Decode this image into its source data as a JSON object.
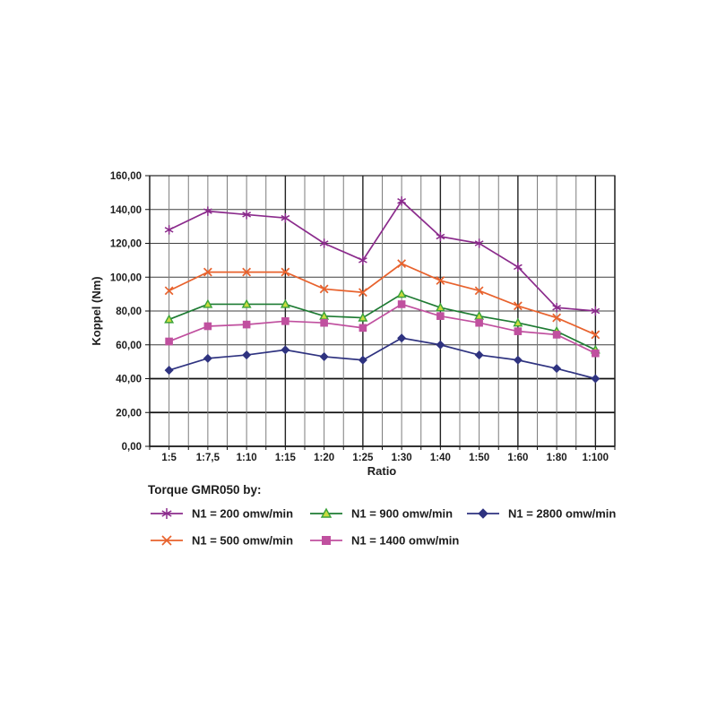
{
  "legend": {
    "title": "Torque GMR050 by:"
  },
  "chart_data": {
    "type": "line",
    "title": "",
    "xlabel": "Ratio",
    "ylabel": "Koppel (Nm)",
    "ylim": [
      0,
      160
    ],
    "ytick_step": 20,
    "ytick_labels": [
      "0,00",
      "20,00",
      "40,00",
      "60,00",
      "80,00",
      "100,00",
      "120,00",
      "140,00",
      "160,00"
    ],
    "grid": "major horizontal every 20, vertical at every half category, darker rules periodically",
    "legend_position": "below-left, 3 columns x 2 rows",
    "categories": [
      "1:5",
      "1:7,5",
      "1:10",
      "1:15",
      "1:20",
      "1:25",
      "1:30",
      "1:40",
      "1:50",
      "1:60",
      "1:80",
      "1:100"
    ],
    "series": [
      {
        "name": "N1 = 200 omw/min",
        "color": "#8B2B8C",
        "marker": "star",
        "values": [
          128,
          139,
          137,
          135,
          120,
          110,
          145,
          124,
          120,
          106,
          82,
          80
        ]
      },
      {
        "name": "N1 = 500 omw/min",
        "color": "#E8622D",
        "marker": "x",
        "values": [
          92,
          103,
          103,
          103,
          93,
          91,
          108,
          98,
          92,
          83,
          76,
          66
        ]
      },
      {
        "name": "N1 = 900 omw/min",
        "color": "#1E7B33",
        "marker": "triangle",
        "marker_fill": "#C9DB3F",
        "marker_stroke": "#3AA23A",
        "values": [
          75,
          84,
          84,
          84,
          77,
          76,
          90,
          82,
          77,
          73,
          68,
          57
        ]
      },
      {
        "name": "N1 = 1400 omw/min",
        "color": "#C0509F",
        "marker": "square",
        "values": [
          62,
          71,
          72,
          74,
          73,
          70,
          84,
          77,
          73,
          68,
          66,
          55
        ]
      },
      {
        "name": "N1 = 2800 omw/min",
        "color": "#2F3380",
        "marker": "diamond",
        "values": [
          45,
          52,
          54,
          57,
          53,
          51,
          64,
          60,
          54,
          51,
          46,
          40
        ]
      }
    ]
  }
}
